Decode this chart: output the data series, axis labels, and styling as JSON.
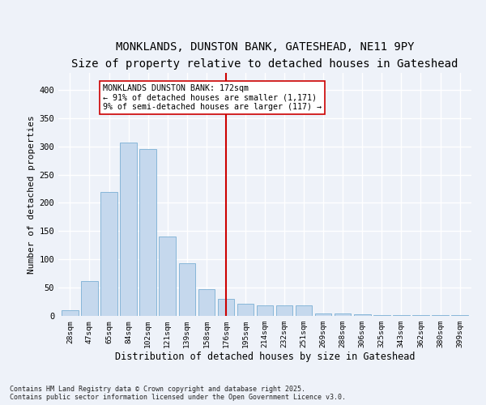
{
  "title": "MONKLANDS, DUNSTON BANK, GATESHEAD, NE11 9PY",
  "subtitle": "Size of property relative to detached houses in Gateshead",
  "xlabel": "Distribution of detached houses by size in Gateshead",
  "ylabel": "Number of detached properties",
  "categories": [
    "28sqm",
    "47sqm",
    "65sqm",
    "84sqm",
    "102sqm",
    "121sqm",
    "139sqm",
    "158sqm",
    "176sqm",
    "195sqm",
    "214sqm",
    "232sqm",
    "251sqm",
    "269sqm",
    "288sqm",
    "306sqm",
    "325sqm",
    "343sqm",
    "362sqm",
    "380sqm",
    "399sqm"
  ],
  "values": [
    10,
    62,
    220,
    307,
    295,
    140,
    93,
    47,
    30,
    22,
    18,
    18,
    18,
    5,
    5,
    3,
    2,
    2,
    2,
    2,
    2
  ],
  "bar_color": "#c5d8ed",
  "bar_edge_color": "#7aafd4",
  "vline_x": 8,
  "vline_color": "#cc0000",
  "annotation_line1": "MONKLANDS DUNSTON BANK: 172sqm",
  "annotation_line2": "← 91% of detached houses are smaller (1,171)",
  "annotation_line3": "9% of semi-detached houses are larger (117) →",
  "annotation_box_color": "#ffffff",
  "annotation_box_edge": "#cc0000",
  "ylim": [
    0,
    430
  ],
  "yticks": [
    0,
    50,
    100,
    150,
    200,
    250,
    300,
    350,
    400
  ],
  "title_fontsize": 10,
  "subtitle_fontsize": 9.5,
  "xlabel_fontsize": 8.5,
  "ylabel_fontsize": 8,
  "tick_fontsize": 7.5,
  "footer_line1": "Contains HM Land Registry data © Crown copyright and database right 2025.",
  "footer_line2": "Contains public sector information licensed under the Open Government Licence v3.0.",
  "bg_color": "#eef2f9",
  "plot_bg_color": "#eef2f9",
  "grid_color": "#ffffff"
}
